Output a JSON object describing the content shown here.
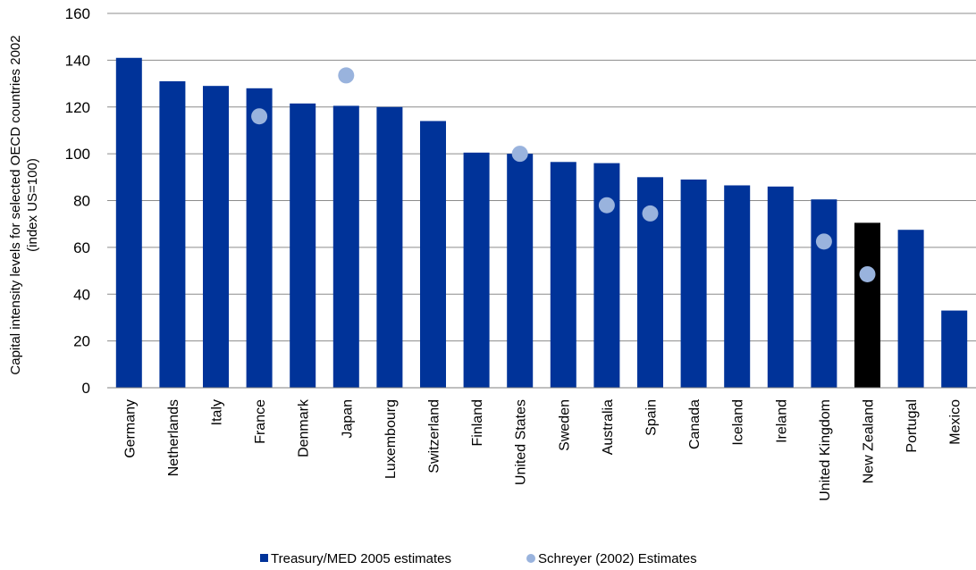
{
  "chart_data": {
    "type": "bar",
    "ylabel_lines": [
      "Capital intensity levels for selected OECD countries 2002",
      "(index US=100)"
    ],
    "xlabel": "",
    "ylim": [
      0,
      160
    ],
    "yticks": [
      0,
      20,
      40,
      60,
      80,
      100,
      120,
      140,
      160
    ],
    "grid": true,
    "legend_position": "bottom-center",
    "categories": [
      "Germany",
      "Netherlands",
      "Italy",
      "France",
      "Denmark",
      "Japan",
      "Luxembourg",
      "Switzerland",
      "Finland",
      "United States",
      "Sweden",
      "Australia",
      "Spain",
      "Canada",
      "Iceland",
      "Ireland",
      "United Kingdom",
      "New Zealand",
      "Portugal",
      "Mexico"
    ],
    "series": [
      {
        "name": "Treasury/MED 2005 estimates",
        "type": "bar",
        "color": "#003399",
        "highlight": {
          "category": "New Zealand",
          "color": "#000000"
        },
        "values": [
          141,
          131,
          129,
          128,
          121.5,
          120.5,
          120,
          114,
          100.5,
          100,
          96.5,
          96,
          90,
          89,
          86.5,
          86,
          80.5,
          70.5,
          67.5,
          33
        ]
      },
      {
        "name": "Schreyer (2002) Estimates",
        "type": "scatter",
        "color": "#99B3DD",
        "values": [
          null,
          null,
          null,
          116,
          null,
          133.5,
          null,
          null,
          null,
          100,
          null,
          78,
          74.5,
          null,
          null,
          null,
          62.5,
          48.5,
          null,
          null
        ]
      }
    ]
  }
}
